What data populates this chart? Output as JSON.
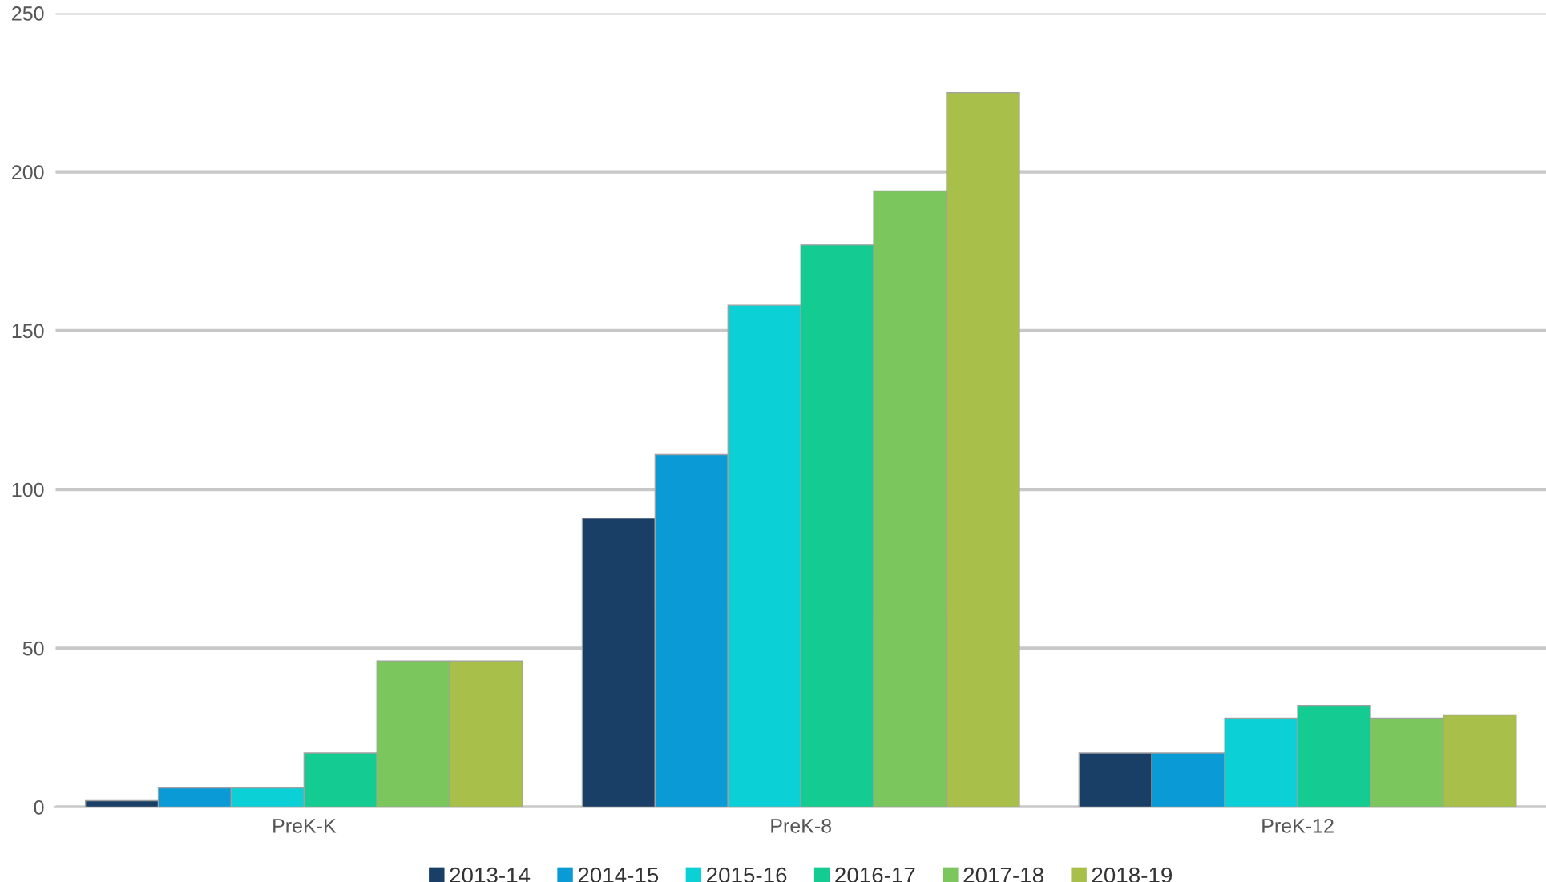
{
  "chart_data": {
    "type": "bar",
    "categories": [
      "PreK-K",
      "PreK-8",
      "PreK-12"
    ],
    "series": [
      {
        "name": "2013-14",
        "color": "#1a3f66",
        "values": [
          2,
          91,
          17
        ]
      },
      {
        "name": "2014-15",
        "color": "#0a9bd6",
        "values": [
          6,
          111,
          17
        ]
      },
      {
        "name": "2015-16",
        "color": "#0bd0d6",
        "values": [
          6,
          158,
          28
        ]
      },
      {
        "name": "2016-17",
        "color": "#14cc92",
        "values": [
          17,
          177,
          32
        ]
      },
      {
        "name": "2017-18",
        "color": "#7cc65e",
        "values": [
          46,
          194,
          28
        ]
      },
      {
        "name": "2018-19",
        "color": "#a8c04a",
        "values": [
          46,
          225,
          29
        ]
      }
    ],
    "ylim": [
      0,
      250
    ],
    "yticks": [
      0,
      50,
      100,
      150,
      200,
      250
    ],
    "grid": "y",
    "legend": "bottom"
  }
}
